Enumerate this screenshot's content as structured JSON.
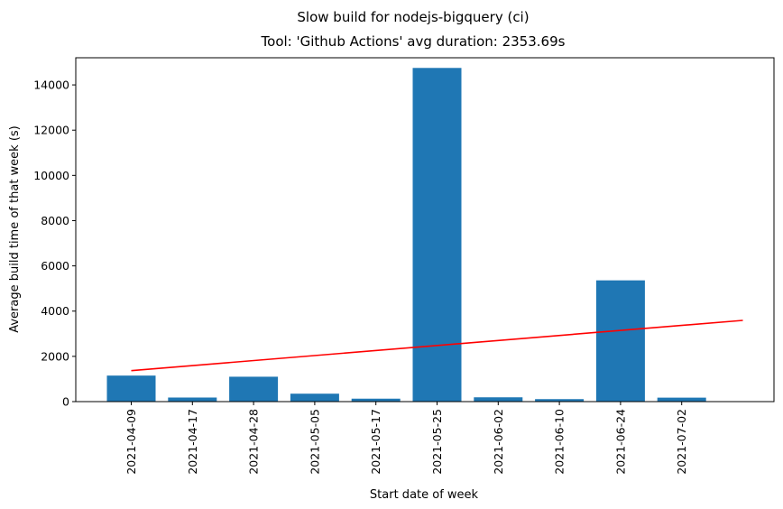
{
  "chart_data": {
    "type": "bar",
    "title": "Slow build for nodejs-bigquery (ci)",
    "subtitle": "Tool: 'Github Actions' avg duration: 2353.69s",
    "xlabel": "Start date of week",
    "ylabel": "Average build time of that week (s)",
    "categories": [
      "2021-04-09",
      "2021-04-17",
      "2021-04-28",
      "2021-05-05",
      "2021-05-17",
      "2021-05-25",
      "2021-06-02",
      "2021-06-10",
      "2021-06-24",
      "2021-07-02"
    ],
    "values": [
      1150,
      180,
      1100,
      350,
      130,
      14750,
      190,
      110,
      5360,
      175
    ],
    "ylim": [
      0,
      15200
    ],
    "yticks": [
      0,
      2000,
      4000,
      6000,
      8000,
      10000,
      12000,
      14000
    ],
    "trendline": {
      "x": [
        0,
        10
      ],
      "y": [
        1370,
        3590
      ]
    },
    "grid": false,
    "colors": {
      "bar": "#1f77b4",
      "trendline": "#ff0000"
    }
  }
}
